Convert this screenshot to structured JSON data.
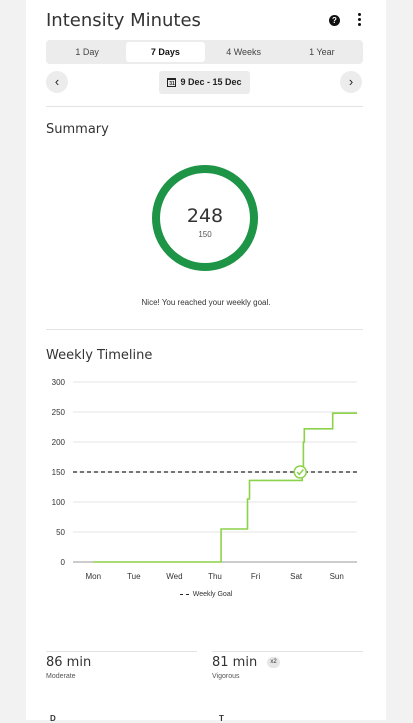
{
  "header": {
    "title": "Intensity Minutes"
  },
  "tabs": [
    {
      "label": "1 Day",
      "active": false
    },
    {
      "label": "7 Days",
      "active": true
    },
    {
      "label": "4 Weeks",
      "active": false
    },
    {
      "label": "1 Year",
      "active": false
    }
  ],
  "date_range": {
    "label": "9 Dec - 15 Dec",
    "calendar_day": "31"
  },
  "icons": {
    "prev": "chevron-left-icon",
    "next": "chevron-right-icon",
    "help": "help-icon",
    "more": "more-vertical-icon"
  },
  "summary": {
    "title": "Summary",
    "total": "248",
    "goal": "150",
    "progress": 1.0,
    "message": "Nice! You reached your weekly goal.",
    "ring_color": "#1e9446"
  },
  "timeline": {
    "title": "Weekly Timeline"
  },
  "chart_data": {
    "type": "line",
    "categories": [
      "Mon",
      "Tue",
      "Wed",
      "Thu",
      "Fri",
      "Sat",
      "Sun"
    ],
    "y_ticks": [
      "300",
      "250",
      "200",
      "150",
      "100",
      "50",
      "0"
    ],
    "ylim": [
      0,
      300
    ],
    "grid": true,
    "series": [
      {
        "color": "#8cd14a",
        "step_points": [
          [
            0,
            0
          ],
          [
            3.15,
            0
          ],
          [
            3.15,
            55
          ],
          [
            3.8,
            55
          ],
          [
            3.8,
            105
          ],
          [
            3.85,
            105
          ],
          [
            3.85,
            136
          ],
          [
            5.15,
            136
          ],
          [
            5.15,
            150
          ],
          [
            5.18,
            150
          ],
          [
            5.18,
            200
          ],
          [
            5.2,
            200
          ],
          [
            5.2,
            222
          ],
          [
            5.9,
            222
          ],
          [
            5.9,
            248
          ],
          [
            6.5,
            248
          ]
        ]
      }
    ],
    "goal_line": {
      "value": 150,
      "label": "Weekly Goal",
      "style": "dashed"
    },
    "goal_marker": {
      "x": 5.1,
      "y": 150
    }
  },
  "stats": {
    "moderate_value": "86 min",
    "moderate_label": "Moderate",
    "vigorous_value": "81 min",
    "vigorous_label": "Vigorous",
    "vigorous_badge": "x2"
  }
}
